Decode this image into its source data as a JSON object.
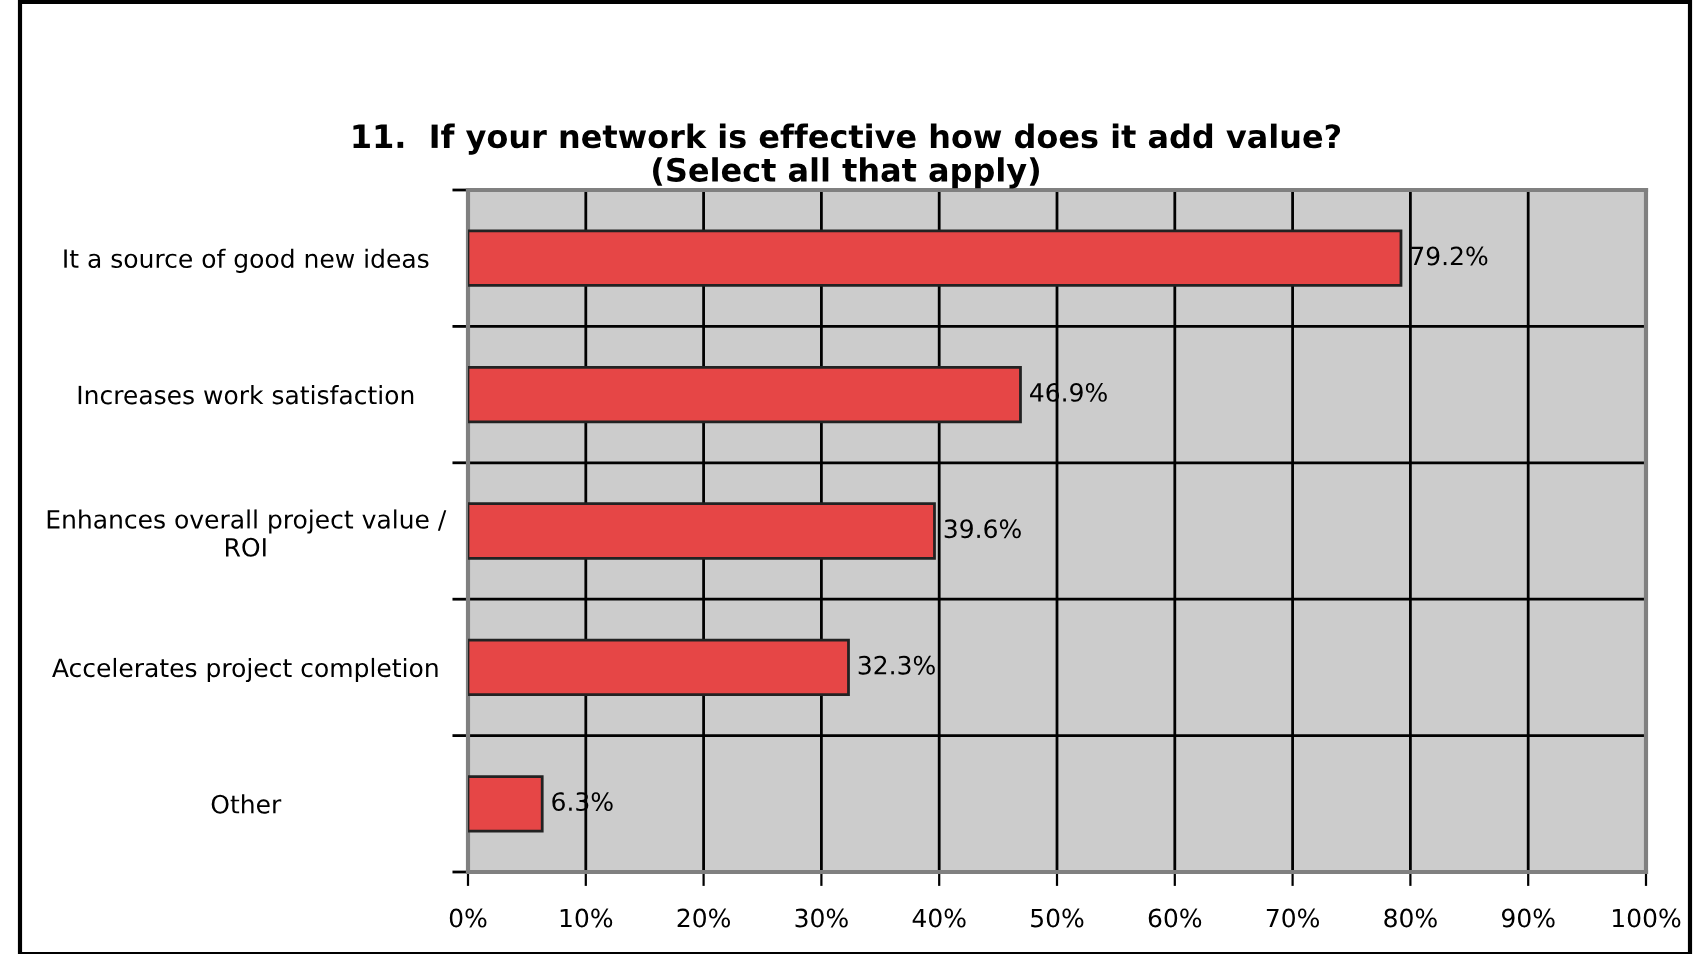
{
  "chart_data": {
    "type": "bar",
    "orientation": "horizontal",
    "title": "11.  If your network is effective how does it add value?\n(Select all that apply)",
    "categories": [
      "It a source of good new ideas",
      "Increases work satisfaction",
      "Enhances overall project value / ROI",
      "Accelerates project completion",
      "Other"
    ],
    "values": [
      79.2,
      46.9,
      39.6,
      32.3,
      6.3
    ],
    "value_labels": [
      "79.2%",
      "46.9%",
      "39.6%",
      "32.3%",
      "6.3%"
    ],
    "color": "#e64646",
    "xlim": [
      0,
      100
    ],
    "xticks": [
      {
        "value": 0,
        "label": "0%"
      },
      {
        "value": 10,
        "label": "10%"
      },
      {
        "value": 20,
        "label": "20%"
      },
      {
        "value": 30,
        "label": "30%"
      },
      {
        "value": 40,
        "label": "40%"
      },
      {
        "value": 50,
        "label": "50%"
      },
      {
        "value": 60,
        "label": "60%"
      },
      {
        "value": 70,
        "label": "70%"
      },
      {
        "value": 80,
        "label": "80%"
      },
      {
        "value": 90,
        "label": "90%"
      },
      {
        "value": 100,
        "label": "100%"
      }
    ],
    "grid": true,
    "legend": false
  }
}
